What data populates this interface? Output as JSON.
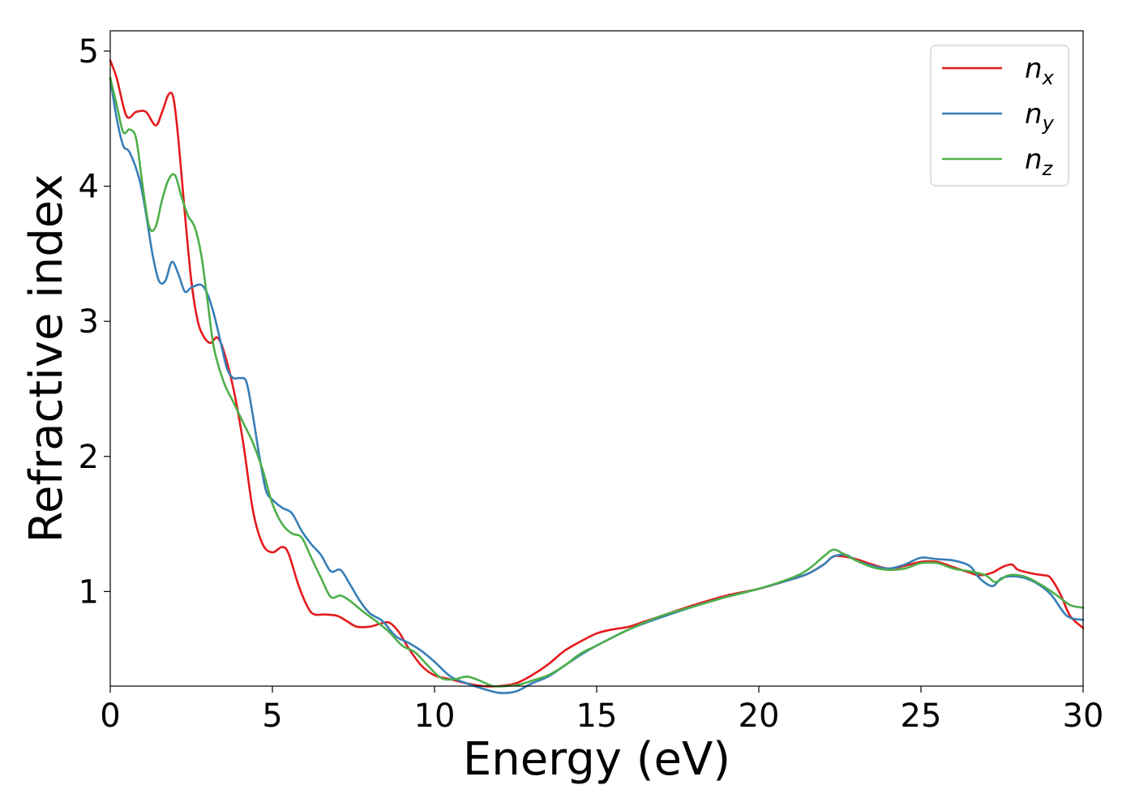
{
  "chart_data": {
    "type": "line",
    "title": "",
    "xlabel": "Energy (eV)",
    "ylabel": "Refractive index",
    "xlim": [
      0,
      30
    ],
    "ylim": [
      0.3,
      5.15
    ],
    "xticks": [
      0,
      5,
      10,
      15,
      20,
      25,
      30
    ],
    "yticks": [
      1,
      2,
      3,
      4,
      5
    ],
    "grid": false,
    "legend": "top-right",
    "series": [
      {
        "name": "n_x",
        "label_base": "n",
        "label_sub": "x",
        "color": "#e41a1c",
        "x": [
          0,
          0.2,
          0.5,
          0.8,
          1.1,
          1.4,
          1.6,
          1.8,
          1.95,
          2.1,
          2.3,
          2.5,
          2.7,
          2.9,
          3.1,
          3.3,
          3.5,
          3.8,
          4.1,
          4.4,
          4.7,
          5.0,
          5.3,
          5.5,
          5.8,
          6.1,
          6.3,
          6.6,
          7.0,
          7.3,
          7.6,
          8.0,
          8.3,
          8.6,
          8.9,
          9.2,
          9.6,
          10.0,
          10.5,
          11.0,
          11.5,
          12.0,
          12.5,
          13.0,
          13.5,
          14.0,
          14.5,
          15.0,
          15.5,
          16.0,
          16.5,
          17.0,
          18.0,
          19.0,
          20.0,
          21.0,
          21.5,
          22.0,
          22.3,
          22.6,
          23.0,
          23.5,
          24.0,
          24.5,
          25.0,
          25.5,
          26.0,
          26.5,
          26.8,
          27.2,
          27.5,
          27.8,
          28.0,
          28.5,
          28.8,
          29.0,
          29.3,
          29.6,
          30.0
        ],
        "y": [
          4.93,
          4.8,
          4.52,
          4.55,
          4.55,
          4.45,
          4.55,
          4.68,
          4.65,
          4.35,
          3.8,
          3.3,
          3.0,
          2.88,
          2.84,
          2.88,
          2.78,
          2.5,
          2.1,
          1.6,
          1.35,
          1.29,
          1.33,
          1.28,
          1.05,
          0.88,
          0.83,
          0.83,
          0.82,
          0.78,
          0.74,
          0.74,
          0.76,
          0.77,
          0.7,
          0.58,
          0.45,
          0.38,
          0.35,
          0.32,
          0.3,
          0.3,
          0.32,
          0.38,
          0.46,
          0.56,
          0.63,
          0.69,
          0.72,
          0.74,
          0.78,
          0.82,
          0.9,
          0.97,
          1.02,
          1.09,
          1.13,
          1.2,
          1.26,
          1.26,
          1.24,
          1.2,
          1.17,
          1.19,
          1.22,
          1.22,
          1.18,
          1.14,
          1.12,
          1.14,
          1.18,
          1.2,
          1.16,
          1.13,
          1.12,
          1.1,
          0.98,
          0.82,
          0.73
        ]
      },
      {
        "name": "n_y",
        "label_base": "n",
        "label_sub": "y",
        "color": "#377eb8",
        "x": [
          0,
          0.2,
          0.4,
          0.6,
          0.9,
          1.1,
          1.3,
          1.5,
          1.7,
          1.9,
          2.1,
          2.3,
          2.5,
          2.8,
          3.0,
          3.2,
          3.4,
          3.6,
          3.8,
          4.0,
          4.2,
          4.4,
          4.6,
          4.8,
          5.0,
          5.3,
          5.6,
          5.9,
          6.2,
          6.5,
          6.8,
          7.1,
          7.4,
          7.7,
          8.0,
          8.4,
          8.8,
          9.2,
          9.6,
          10.0,
          10.5,
          11.0,
          11.5,
          12.0,
          12.5,
          13.0,
          13.5,
          14.0,
          14.5,
          15.0,
          16.0,
          17.0,
          18.0,
          19.0,
          20.0,
          21.0,
          21.5,
          22.0,
          22.3,
          22.7,
          23.0,
          23.5,
          24.0,
          24.5,
          25.0,
          25.5,
          26.0,
          26.5,
          26.8,
          27.2,
          27.5,
          28.0,
          28.5,
          29.0,
          29.5,
          30.0
        ],
        "y": [
          4.8,
          4.5,
          4.3,
          4.25,
          4.05,
          3.8,
          3.5,
          3.3,
          3.3,
          3.44,
          3.35,
          3.22,
          3.25,
          3.27,
          3.2,
          3.05,
          2.85,
          2.65,
          2.58,
          2.58,
          2.55,
          2.3,
          2.0,
          1.75,
          1.68,
          1.62,
          1.58,
          1.45,
          1.35,
          1.27,
          1.15,
          1.16,
          1.05,
          0.93,
          0.84,
          0.78,
          0.67,
          0.62,
          0.56,
          0.48,
          0.37,
          0.32,
          0.28,
          0.25,
          0.26,
          0.32,
          0.37,
          0.45,
          0.53,
          0.6,
          0.72,
          0.81,
          0.89,
          0.96,
          1.02,
          1.09,
          1.13,
          1.2,
          1.26,
          1.27,
          1.23,
          1.19,
          1.17,
          1.2,
          1.25,
          1.24,
          1.23,
          1.19,
          1.1,
          1.04,
          1.1,
          1.11,
          1.07,
          0.98,
          0.82,
          0.79
        ]
      },
      {
        "name": "n_z",
        "label_base": "n",
        "label_sub": "z",
        "color": "#4daf4a",
        "x": [
          0,
          0.2,
          0.4,
          0.6,
          0.8,
          1.0,
          1.2,
          1.4,
          1.6,
          1.8,
          2.0,
          2.2,
          2.4,
          2.6,
          2.8,
          3.0,
          3.2,
          3.5,
          3.8,
          4.1,
          4.4,
          4.7,
          5.0,
          5.3,
          5.6,
          5.9,
          6.2,
          6.5,
          6.8,
          7.1,
          7.4,
          7.8,
          8.2,
          8.6,
          9.0,
          9.4,
          9.8,
          10.2,
          10.6,
          11.0,
          11.4,
          11.8,
          12.2,
          12.6,
          13.0,
          13.5,
          14.0,
          14.5,
          15.0,
          16.0,
          17.0,
          18.0,
          19.0,
          20.0,
          21.0,
          21.5,
          22.0,
          22.3,
          22.6,
          23.0,
          23.5,
          24.0,
          24.5,
          25.0,
          25.5,
          26.0,
          26.5,
          27.0,
          27.3,
          27.7,
          28.2,
          28.7,
          29.2,
          29.6,
          30.0
        ],
        "y": [
          4.8,
          4.6,
          4.4,
          4.42,
          4.35,
          4.0,
          3.7,
          3.7,
          3.9,
          4.05,
          4.08,
          3.92,
          3.78,
          3.7,
          3.5,
          3.15,
          2.8,
          2.55,
          2.4,
          2.25,
          2.1,
          1.9,
          1.65,
          1.5,
          1.43,
          1.4,
          1.25,
          1.1,
          0.96,
          0.97,
          0.93,
          0.85,
          0.78,
          0.7,
          0.6,
          0.55,
          0.45,
          0.36,
          0.35,
          0.37,
          0.34,
          0.3,
          0.3,
          0.31,
          0.34,
          0.38,
          0.45,
          0.54,
          0.6,
          0.72,
          0.82,
          0.89,
          0.96,
          1.02,
          1.1,
          1.16,
          1.26,
          1.31,
          1.28,
          1.23,
          1.18,
          1.16,
          1.17,
          1.21,
          1.21,
          1.17,
          1.15,
          1.12,
          1.07,
          1.12,
          1.11,
          1.05,
          0.97,
          0.9,
          0.88
        ]
      }
    ]
  }
}
